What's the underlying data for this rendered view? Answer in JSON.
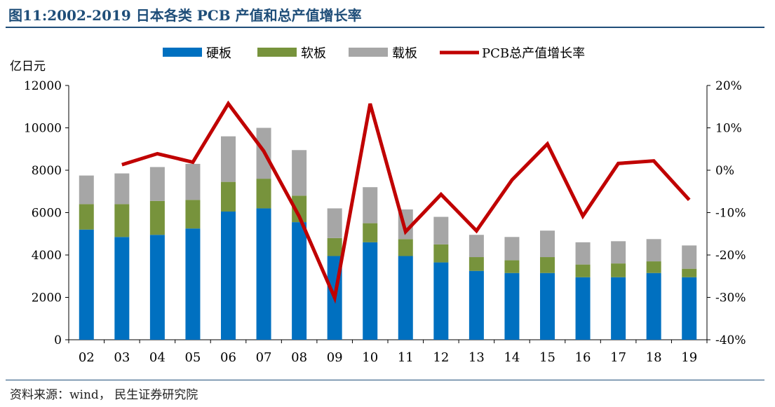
{
  "title": "图11:2002-2019 日本各类 PCB 产值和总产值增长率",
  "source": "资料来源：wind， 民生证券研究院",
  "chart_data": {
    "type": "bar",
    "stacked": true,
    "categories": [
      "02",
      "03",
      "04",
      "05",
      "06",
      "07",
      "08",
      "09",
      "10",
      "11",
      "12",
      "13",
      "14",
      "15",
      "16",
      "17",
      "18",
      "19"
    ],
    "y_left": {
      "unit": "亿日元",
      "min": 0,
      "max": 12000,
      "ticks": [
        "0",
        "2000",
        "4000",
        "6000",
        "8000",
        "10000",
        "12000"
      ],
      "tick_values": [
        0,
        2000,
        4000,
        6000,
        8000,
        10000,
        12000
      ]
    },
    "y_right": {
      "min": -40,
      "max": 20,
      "ticks": [
        "-40%",
        "-30%",
        "-20%",
        "-10%",
        "0%",
        "10%",
        "20%"
      ],
      "tick_values": [
        -40,
        -30,
        -20,
        -10,
        0,
        10,
        20
      ]
    },
    "series": [
      {
        "name": "硬板",
        "type": "bar",
        "axis": "left",
        "color": "#0070C0",
        "values": [
          5200,
          4850,
          4950,
          5250,
          6050,
          6200,
          5550,
          3950,
          4600,
          3950,
          3650,
          3250,
          3150,
          3150,
          2950,
          2950,
          3150,
          2950
        ]
      },
      {
        "name": "软板",
        "type": "bar",
        "axis": "left",
        "color": "#77933C",
        "values": [
          1200,
          1550,
          1600,
          1350,
          1400,
          1400,
          1250,
          850,
          900,
          800,
          850,
          650,
          600,
          750,
          600,
          650,
          550,
          400
        ]
      },
      {
        "name": "载板",
        "type": "bar",
        "axis": "left",
        "color": "#A6A6A6",
        "values": [
          1350,
          1450,
          1600,
          1700,
          2150,
          2400,
          2150,
          1400,
          1700,
          1400,
          1300,
          1050,
          1100,
          1250,
          1050,
          1050,
          1050,
          1100
        ]
      },
      {
        "name": "PCB总产值增长率",
        "type": "line",
        "axis": "right",
        "color": "#C00000",
        "values": [
          null,
          1.3,
          3.9,
          1.9,
          15.7,
          4.5,
          -10.9,
          -30.1,
          15.7,
          -14.5,
          -5.7,
          -14.3,
          -2.3,
          6.2,
          -10.8,
          1.6,
          2.2,
          -7.0
        ]
      }
    ],
    "legend_position": "top"
  }
}
